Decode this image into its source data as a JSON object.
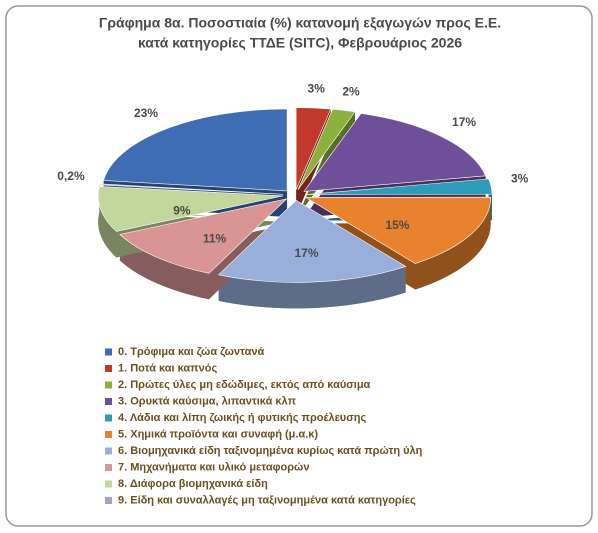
{
  "chart_data": {
    "type": "pie3d",
    "title": [
      "Γράφημα 8α. Ποσοστιαία (%) κατανομή εξαγωγών προς Ε.Ε.",
      "κατά κατηγορίες ΤΤΔΕ (SITC),  Φεβρουάριος 2026"
    ],
    "categories": [
      "0. Τρόφιμα και ζώα ζωντανά",
      "1. Ποτά και καπνός",
      "2. Πρώτες ύλες μη εδώδιμες, εκτός από καύσιμα",
      "3. Ορυκτά καύσιμα, λιπαντικά κλπ",
      "4. Λάδια και λίπη ζωικής ή φυτικής προέλευσης",
      "5. Χημικά προϊόντα και συναφή (μ.α.κ)",
      "6. Βιομηχανικά είδη ταξινομημένα κυρίως κατά πρώτη ύλη",
      "7. Μηχανήματα και υλικό μεταφορών",
      "8. Διάφορα βιομηχανικά είδη",
      "9. Είδη και συναλλαγές μη ταξινομημένα κατά κατηγορίες"
    ],
    "values": [
      23,
      3,
      2,
      17,
      3,
      15,
      17,
      11,
      9,
      0.2
    ],
    "value_labels": [
      "23%",
      "3%",
      "2%",
      "17%",
      "3%",
      "15%",
      "17%",
      "11%",
      "9%",
      "0,2%"
    ],
    "colors": [
      "#3e6db3",
      "#c0392b",
      "#8db13f",
      "#6f4f9a",
      "#2e9cb8",
      "#e8822e",
      "#9aaedb",
      "#d99594",
      "#c3d69b",
      "#a89cc8"
    ],
    "legend": "bottom"
  }
}
